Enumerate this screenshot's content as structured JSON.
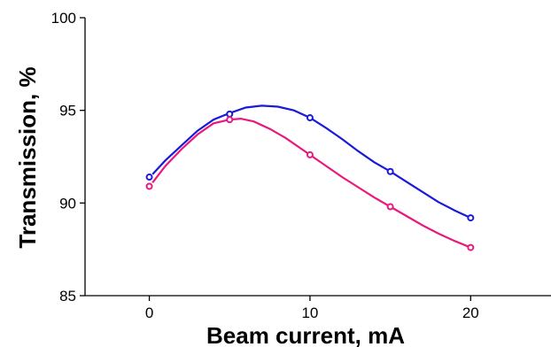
{
  "chart_data": {
    "type": "line",
    "title": "",
    "xlabel": "Beam current, mA",
    "ylabel": "Transmission, %",
    "xlim": [
      -4,
      25
    ],
    "ylim": [
      85,
      100
    ],
    "x_ticks": [
      0,
      10,
      20
    ],
    "x_tick_labels": [
      "0",
      "10",
      "20"
    ],
    "y_ticks": [
      85,
      90,
      95,
      100
    ],
    "y_tick_labels": [
      "85",
      "90",
      "95",
      "100"
    ],
    "grid": false,
    "legend": "none",
    "series": [
      {
        "color": "#1a1adb",
        "x": [
          0,
          5,
          10,
          15,
          20
        ],
        "y": [
          91.4,
          94.8,
          94.6,
          91.7,
          89.2
        ],
        "smooth": [
          [
            0.2,
            91.55
          ],
          [
            1,
            92.3
          ],
          [
            2,
            93.1
          ],
          [
            3,
            93.9
          ],
          [
            4,
            94.5
          ],
          [
            5,
            94.85
          ],
          [
            6,
            95.15
          ],
          [
            7,
            95.25
          ],
          [
            8,
            95.2
          ],
          [
            9,
            95.0
          ],
          [
            10,
            94.6
          ],
          [
            11,
            94.05
          ],
          [
            12,
            93.45
          ],
          [
            13,
            92.8
          ],
          [
            14,
            92.2
          ],
          [
            15,
            91.7
          ],
          [
            16,
            91.15
          ],
          [
            17,
            90.6
          ],
          [
            18,
            90.05
          ],
          [
            19,
            89.6
          ],
          [
            20,
            89.2
          ]
        ]
      },
      {
        "color": "#e8197e",
        "x": [
          0,
          5,
          10,
          15,
          20
        ],
        "y": [
          90.9,
          94.5,
          92.6,
          89.8,
          87.6
        ],
        "smooth": [
          [
            0.2,
            91.1
          ],
          [
            1,
            92.0
          ],
          [
            2,
            92.9
          ],
          [
            3,
            93.7
          ],
          [
            4,
            94.3
          ],
          [
            5,
            94.5
          ],
          [
            5.7,
            94.55
          ],
          [
            6.5,
            94.4
          ],
          [
            7.5,
            94.0
          ],
          [
            8.5,
            93.5
          ],
          [
            10,
            92.6
          ],
          [
            11,
            92.0
          ],
          [
            12,
            91.4
          ],
          [
            13,
            90.85
          ],
          [
            14,
            90.3
          ],
          [
            15,
            89.8
          ],
          [
            16,
            89.3
          ],
          [
            17,
            88.8
          ],
          [
            18,
            88.35
          ],
          [
            19,
            87.95
          ],
          [
            20,
            87.6
          ]
        ]
      }
    ]
  }
}
